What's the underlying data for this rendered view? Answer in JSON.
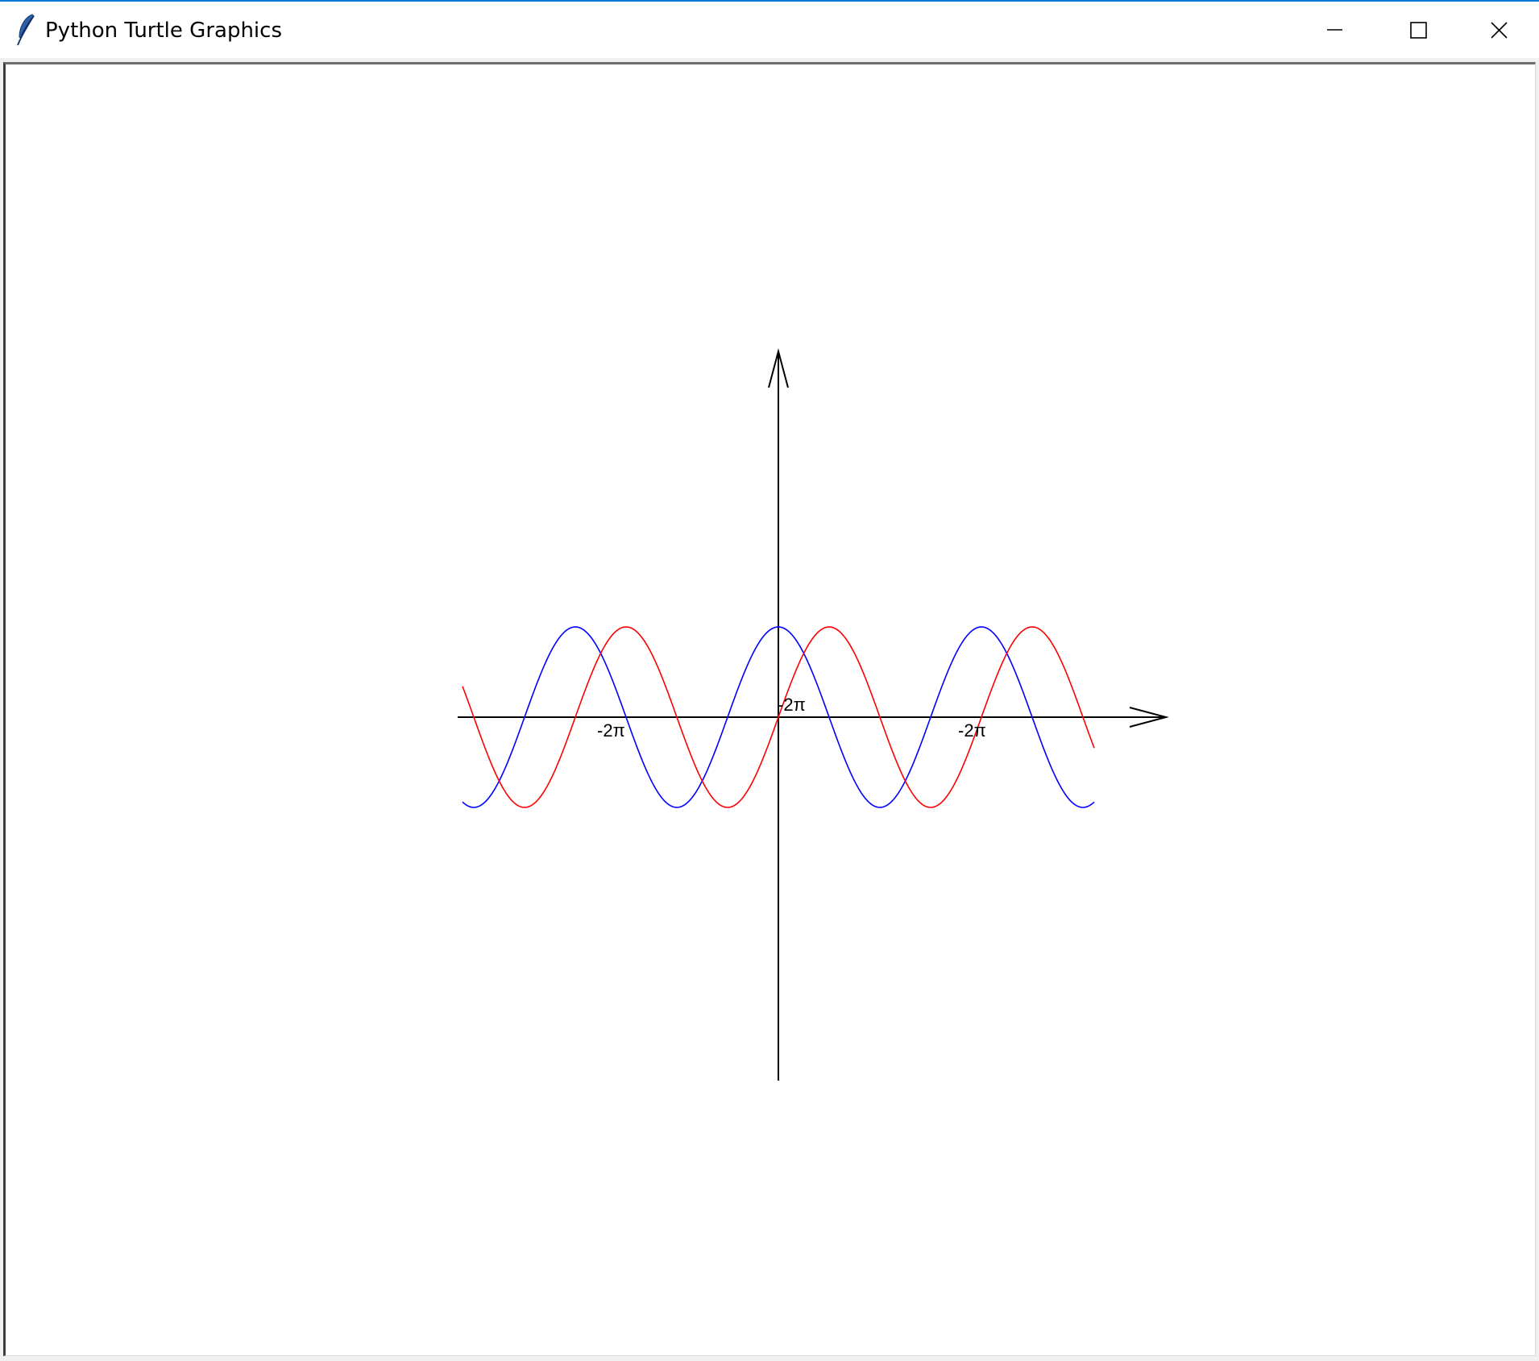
{
  "window": {
    "title": "Python Turtle Graphics",
    "app_icon": "feather-icon",
    "controls": {
      "minimize_icon": "minimize-icon",
      "maximize_icon": "maximize-icon",
      "close_icon": "close-icon"
    }
  },
  "colors": {
    "accent": "#0078d7",
    "axis": "#000000",
    "series_blue": "#0000ff",
    "series_red": "#ff0000"
  },
  "chart_data": {
    "type": "line",
    "title": "",
    "xlabel": "",
    "ylabel": "",
    "xlim": [
      -3.5,
      4.0
    ],
    "ylim": [
      -4.0,
      4.0
    ],
    "x_ticks": [
      {
        "x": -1.83,
        "label": "-2π"
      },
      {
        "x": 0.17,
        "label": "-2π"
      },
      {
        "x": 2.17,
        "label": "-2π"
      }
    ],
    "axis_arrows": true,
    "grid": false,
    "series": [
      {
        "color": "blue",
        "function": "cos",
        "amplitude": 1,
        "x": [
          -3.5,
          -3.0,
          -2.5,
          -2.0,
          -1.5,
          -1.0,
          -0.5,
          0.0,
          0.5,
          1.0,
          1.5,
          2.0,
          2.5,
          3.0,
          3.5
        ],
        "y": [
          0,
          -1,
          0,
          1,
          0,
          -1,
          0,
          1,
          0,
          -1,
          0,
          1,
          0,
          -1,
          0
        ]
      },
      {
        "color": "red",
        "function": "sin",
        "amplitude": 1,
        "x": [
          -3.5,
          -3.0,
          -2.5,
          -2.0,
          -1.5,
          -1.0,
          -0.5,
          0.0,
          0.5,
          1.0,
          1.5,
          2.0,
          2.5,
          3.0,
          3.5
        ],
        "y": [
          1,
          0,
          -1,
          0,
          1,
          0,
          -1,
          0,
          1,
          0,
          -1,
          0,
          1,
          0,
          -1
        ]
      }
    ]
  }
}
